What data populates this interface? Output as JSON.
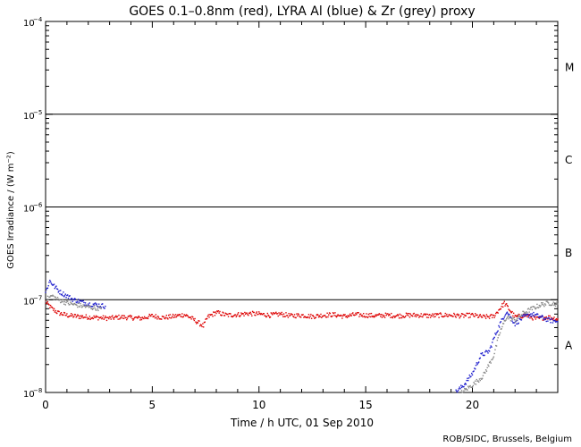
{
  "chart_data": {
    "type": "scatter",
    "title": "GOES 0.1–0.8nm (red), LYRA Al (blue) & Zr (grey) proxy",
    "xlabel": "Time / h UTC, 01 Sep 2010",
    "ylabel": "GOES Irradiance / (W m⁻²)",
    "credit": "ROB/SIDC, Brussels, Belgium",
    "xlim": [
      0,
      24
    ],
    "ylim": [
      1e-08,
      0.0001
    ],
    "yscale": "log",
    "x_ticks": [
      {
        "value": 0,
        "label": "0"
      },
      {
        "value": 5,
        "label": "5"
      },
      {
        "value": 10,
        "label": "10"
      },
      {
        "value": 15,
        "label": "15"
      },
      {
        "value": 20,
        "label": "20"
      }
    ],
    "y_ticks": [
      {
        "value": 1e-08,
        "base": "10",
        "exp": "−8"
      },
      {
        "value": 1e-07,
        "base": "10",
        "exp": "−7"
      },
      {
        "value": 1e-06,
        "base": "10",
        "exp": "−6"
      },
      {
        "value": 1e-05,
        "base": "10",
        "exp": "−5"
      },
      {
        "value": 0.0001,
        "base": "10",
        "exp": "−4"
      }
    ],
    "threshold_lines": [
      1e-07,
      1e-06,
      1e-05
    ],
    "flare_classes": [
      {
        "label": "M",
        "y": 3.2e-05
      },
      {
        "label": "C",
        "y": 3.2e-06
      },
      {
        "label": "B",
        "y": 3.2e-07
      },
      {
        "label": "A",
        "y": 3.2e-08
      }
    ],
    "series": [
      {
        "color": "#dd0000",
        "x": [
          0.0,
          0.3,
          0.6,
          1.0,
          1.5,
          2.0,
          2.5,
          3.0,
          3.5,
          4.0,
          4.5,
          5.0,
          5.5,
          6.0,
          6.5,
          6.8,
          7.4,
          7.6,
          8.0,
          8.5,
          9.0,
          9.5,
          10.0,
          10.5,
          11.0,
          11.5,
          12.0,
          12.5,
          13.0,
          13.5,
          14.0,
          14.5,
          15.0,
          15.5,
          16.0,
          16.5,
          17.0,
          17.5,
          18.0,
          18.5,
          19.0,
          19.5,
          20.0,
          20.5,
          21.0,
          21.5,
          21.8,
          22.0,
          22.5,
          23.0,
          23.5,
          24.0
        ],
        "y": [
          9.5e-08,
          8e-08,
          7.2e-08,
          6.8e-08,
          6.6e-08,
          6.5e-08,
          6.4e-08,
          6.3e-08,
          6.5e-08,
          6.4e-08,
          6.3e-08,
          6.7e-08,
          6.4e-08,
          6.6e-08,
          6.9e-08,
          6.4e-08,
          5.2e-08,
          6.5e-08,
          7.3e-08,
          6.8e-08,
          6.9e-08,
          7.1e-08,
          7e-08,
          6.8e-08,
          7e-08,
          6.7e-08,
          6.8e-08,
          6.6e-08,
          6.8e-08,
          6.9e-08,
          6.6e-08,
          6.9e-08,
          6.8e-08,
          6.7e-08,
          6.8e-08,
          6.7e-08,
          6.8e-08,
          6.8e-08,
          6.7e-08,
          6.8e-08,
          6.8e-08,
          6.7e-08,
          6.8e-08,
          6.5e-08,
          6.6e-08,
          9.2e-08,
          7.5e-08,
          6.5e-08,
          6.8e-08,
          6.2e-08,
          6.5e-08,
          6.2e-08
        ]
      },
      {
        "color": "#1a1acc",
        "x": [
          0.0,
          0.2,
          0.4,
          0.7,
          1.0,
          1.3,
          1.6,
          2.0,
          2.4,
          2.8,
          19.2,
          19.6,
          20.0,
          20.4,
          20.8,
          21.0,
          21.3,
          21.6,
          22.0,
          22.4,
          22.8,
          23.2,
          23.6,
          24.0
        ],
        "y": [
          1.2e-07,
          1.6e-07,
          1.4e-07,
          1.2e-07,
          1.1e-07,
          1e-07,
          9.6e-08,
          9e-08,
          8.8e-08,
          8.5e-08,
          1e-08,
          1.2e-08,
          1.6e-08,
          2.5e-08,
          2.8e-08,
          3.8e-08,
          5.5e-08,
          7.5e-08,
          5.5e-08,
          6.5e-08,
          7e-08,
          6.5e-08,
          6e-08,
          5.8e-08
        ]
      },
      {
        "color": "#888888",
        "x": [
          0.0,
          0.3,
          0.6,
          1.0,
          1.4,
          1.8,
          2.2,
          2.6,
          19.5,
          20.0,
          20.5,
          21.0,
          21.3,
          21.6,
          22.0,
          22.4,
          22.8,
          23.2,
          23.6,
          24.0
        ],
        "y": [
          1e-07,
          1.1e-07,
          1e-07,
          9.2e-08,
          8.8e-08,
          8.5e-08,
          8.2e-08,
          8e-08,
          1e-08,
          1.2e-08,
          1.5e-08,
          2.5e-08,
          4.5e-08,
          6.5e-08,
          6e-08,
          7.2e-08,
          8e-08,
          8.8e-08,
          9.2e-08,
          9e-08
        ]
      }
    ]
  }
}
